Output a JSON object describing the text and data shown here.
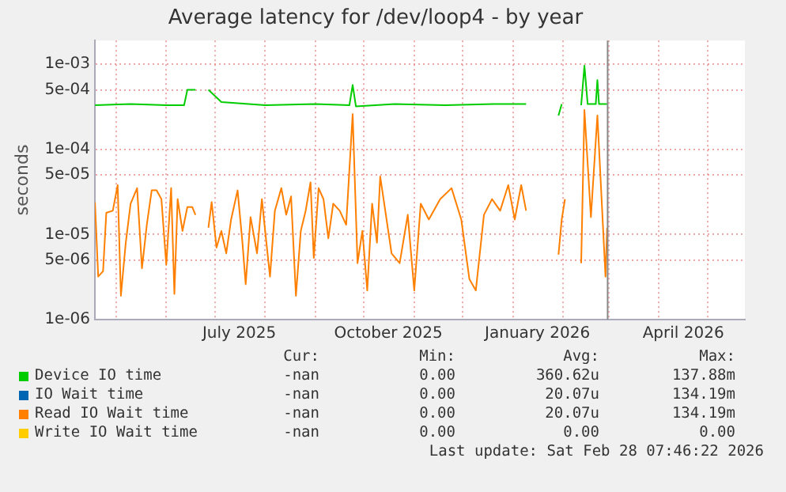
{
  "chart_data": {
    "type": "line",
    "title": "Average latency for /dev/loop4 - by year",
    "ylabel": "seconds",
    "log": "y",
    "grid": true,
    "legend": "bottom",
    "marker": "none",
    "line_style": "solid",
    "xlim": [
      "2025-04-18",
      "2026-05-24"
    ],
    "xticks": [
      {
        "value": "2025-05-01",
        "label": null
      },
      {
        "value": "2025-06-01",
        "label": null
      },
      {
        "value": "2025-07-01",
        "label": null
      },
      {
        "value": "2025-07-16",
        "label": "July 2025"
      },
      {
        "value": "2025-08-01",
        "label": null
      },
      {
        "value": "2025-09-01",
        "label": null
      },
      {
        "value": "2025-10-01",
        "label": null
      },
      {
        "value": "2025-10-16",
        "label": "October 2025"
      },
      {
        "value": "2025-11-01",
        "label": null
      },
      {
        "value": "2025-12-01",
        "label": null
      },
      {
        "value": "2026-01-01",
        "label": null
      },
      {
        "value": "2026-01-16",
        "label": "January 2026"
      },
      {
        "value": "2026-02-01",
        "label": null
      },
      {
        "value": "2026-03-01",
        "label": null
      },
      {
        "value": "2026-04-01",
        "label": null
      },
      {
        "value": "2026-04-16",
        "label": "April 2026"
      },
      {
        "value": "2026-05-01",
        "label": null
      }
    ],
    "ylim": [
      1e-06,
      0.0019
    ],
    "yticks": [
      {
        "value": 1e-06,
        "label": "1e-06"
      },
      {
        "value": 5e-06,
        "label": "5e-06"
      },
      {
        "value": 1e-05,
        "label": "1e-05"
      },
      {
        "value": 5e-05,
        "label": "5e-05"
      },
      {
        "value": 0.0001,
        "label": "1e-04"
      },
      {
        "value": 0.0005,
        "label": "5e-04"
      },
      {
        "value": 0.001,
        "label": "1e-03"
      }
    ],
    "x": [
      "2025-04-18",
      "2025-04-20",
      "2025-04-23",
      "2025-04-25",
      "2025-04-29",
      "2025-05-02",
      "2025-05-04",
      "2025-05-07",
      "2025-05-10",
      "2025-05-14",
      "2025-05-17",
      "2025-05-20",
      "2025-05-23",
      "2025-05-26",
      "2025-05-29",
      "2025-06-01",
      "2025-06-04",
      "2025-06-06",
      "2025-06-08",
      "2025-06-11",
      "2025-06-14",
      "2025-06-17",
      "2025-06-19",
      "2025-06-24",
      "2025-06-27",
      "2025-06-29",
      "2025-07-02",
      "2025-07-05",
      "2025-07-08",
      "2025-07-11",
      "2025-07-15",
      "2025-07-18",
      "2025-07-20",
      "2025-07-23",
      "2025-07-27",
      "2025-07-30",
      "2025-08-01",
      "2025-08-04",
      "2025-08-07",
      "2025-08-11",
      "2025-08-14",
      "2025-08-17",
      "2025-08-20",
      "2025-08-23",
      "2025-08-26",
      "2025-08-29",
      "2025-08-31",
      "2025-09-03",
      "2025-09-06",
      "2025-09-09",
      "2025-09-12",
      "2025-09-16",
      "2025-09-20",
      "2025-09-24",
      "2025-09-27",
      "2025-09-30",
      "2025-10-03",
      "2025-10-06",
      "2025-10-09",
      "2025-10-11",
      "2025-10-18",
      "2025-10-23",
      "2025-10-28",
      "2025-11-01",
      "2025-11-05",
      "2025-11-10",
      "2025-11-17",
      "2025-11-24",
      "2025-11-30",
      "2025-12-05",
      "2025-12-09",
      "2025-12-14",
      "2025-12-19",
      "2025-12-24",
      "2025-12-29",
      "2026-01-02",
      "2026-01-06",
      "2026-01-09",
      "2026-01-20",
      "2026-01-29",
      "2026-01-31",
      "2026-02-02",
      "2026-02-06",
      "2026-02-12",
      "2026-02-14",
      "2026-02-18",
      "2026-02-22",
      "2026-02-27",
      "2026-02-28"
    ],
    "series": [
      {
        "name": "Device IO time",
        "color": "#00cc00",
        "x": [
          "2025-04-18",
          "2025-05-10",
          "2025-06-01",
          "2025-06-12",
          "2025-06-14",
          "2025-06-19",
          "2025-06-23",
          "2025-06-27",
          "2025-07-05",
          "2025-08-01",
          "2025-09-01",
          "2025-09-22",
          "2025-09-24",
          "2025-09-26",
          "2025-10-20",
          "2025-11-20",
          "2025-12-20",
          "2026-01-09",
          "2026-01-20",
          "2026-01-29",
          "2026-01-31",
          "2026-02-06",
          "2026-02-12",
          "2026-02-14",
          "2026-02-16",
          "2026-02-21",
          "2026-02-22",
          "2026-02-23",
          "2026-02-28"
        ],
        "values": [
          0.00033,
          0.00034,
          0.00033,
          0.00033,
          0.0005,
          0.0005,
          null,
          0.0005,
          0.00036,
          0.00033,
          0.00034,
          0.00033,
          0.00057,
          0.00032,
          0.00034,
          0.00033,
          0.00034,
          0.00034,
          null,
          0.00025,
          0.00034,
          null,
          0.00033,
          0.00096,
          0.00034,
          0.00034,
          0.00065,
          0.00034,
          0.00034
        ]
      },
      {
        "name": "IO Wait time",
        "color": "#0066b3",
        "values": [
          null,
          null,
          null,
          null,
          null,
          null,
          null,
          null,
          null,
          null,
          null,
          null,
          null,
          null,
          null,
          null,
          null,
          null,
          null,
          null,
          null,
          null,
          null,
          null,
          null,
          null,
          null,
          null,
          null,
          null,
          null,
          null,
          null,
          null,
          null,
          null,
          null,
          null,
          null,
          null,
          null,
          null,
          null,
          null,
          null,
          null,
          null,
          null,
          null,
          null,
          null,
          null,
          null,
          null,
          null,
          null,
          null,
          null,
          null,
          null,
          null,
          null,
          null,
          null,
          null,
          null,
          null,
          null,
          null,
          null,
          null,
          null,
          null,
          null,
          null,
          null,
          null,
          null,
          null,
          null,
          null,
          null,
          null,
          null,
          null,
          null,
          null,
          null,
          null
        ]
      },
      {
        "name": "Read IO Wait time",
        "color": "#ff8000",
        "values": [
          2.4e-05,
          3.2e-06,
          3.7e-06,
          1.8e-05,
          1.9e-05,
          3.8e-05,
          1.9e-06,
          8e-06,
          2.3e-05,
          3.5e-05,
          4e-06,
          1.3e-05,
          3.3e-05,
          3.3e-05,
          2.6e-05,
          4.4e-06,
          3.5e-05,
          2e-06,
          2.6e-05,
          1.1e-05,
          2.1e-05,
          2.1e-05,
          1.7e-05,
          null,
          1.2e-05,
          2.4e-05,
          7e-06,
          1.1e-05,
          6e-06,
          1.5e-05,
          3.3e-05,
          8e-06,
          2.6e-06,
          1.6e-05,
          6e-06,
          2.6e-05,
          1.1e-05,
          3.2e-06,
          1.9e-05,
          3.5e-05,
          1.7e-05,
          2.8e-05,
          1.9e-06,
          1.1e-05,
          1.9e-05,
          4.1e-05,
          5.3e-06,
          3.5e-05,
          2.6e-05,
          9e-06,
          2.3e-05,
          1.9e-05,
          1.3e-05,
          0.00026,
          4.6e-06,
          1.1e-05,
          2.2e-06,
          2.3e-05,
          8e-06,
          4.8e-05,
          6e-06,
          4.6e-06,
          1.7e-05,
          2.2e-06,
          2.3e-05,
          1.5e-05,
          2.6e-05,
          3.5e-05,
          1.5e-05,
          3e-06,
          2.2e-06,
          1.7e-05,
          2.6e-05,
          1.9e-05,
          3.8e-05,
          1.5e-05,
          3.8e-05,
          1.9e-05,
          null,
          5.8e-06,
          1.5e-05,
          2.6e-05,
          null,
          4.6e-06,
          0.00029,
          1.6e-05,
          0.00025,
          3.2e-06,
          1.2e-05
        ]
      },
      {
        "name": "Write IO Wait time",
        "color": "#ffcc00",
        "values": [
          null,
          null,
          null,
          null,
          null,
          null,
          null,
          null,
          null,
          null,
          null,
          null,
          null,
          null,
          null,
          null,
          null,
          null,
          null,
          null,
          null,
          null,
          null,
          null,
          null,
          null,
          null,
          null,
          null,
          null,
          null,
          null,
          null,
          null,
          null,
          null,
          null,
          null,
          null,
          null,
          null,
          null,
          null,
          null,
          null,
          null,
          null,
          null,
          null,
          null,
          null,
          null,
          null,
          null,
          null,
          null,
          null,
          null,
          null,
          null,
          null,
          null,
          null,
          null,
          null,
          null,
          null,
          null,
          null,
          null,
          null,
          null,
          null,
          null,
          null,
          null,
          null,
          null,
          null,
          null,
          null,
          null,
          null,
          null,
          null,
          null,
          null,
          null,
          null
        ]
      }
    ],
    "ref_lines": [
      {
        "axis": "x",
        "value": "2026-02-28T07:46",
        "color": "#888888"
      }
    ],
    "annotations": [
      "Cur:",
      "Min:",
      "Avg:",
      "Max:",
      "-nan",
      "0.00",
      "360.62u",
      "137.88m",
      "-nan",
      "0.00",
      "20.07u",
      "134.19m",
      "-nan",
      "0.00",
      "20.07u",
      "134.19m",
      "-nan",
      "0.00",
      "0.00",
      "0.00",
      "Last update: Sat Feb 28 07:46:22 2026"
    ]
  }
}
